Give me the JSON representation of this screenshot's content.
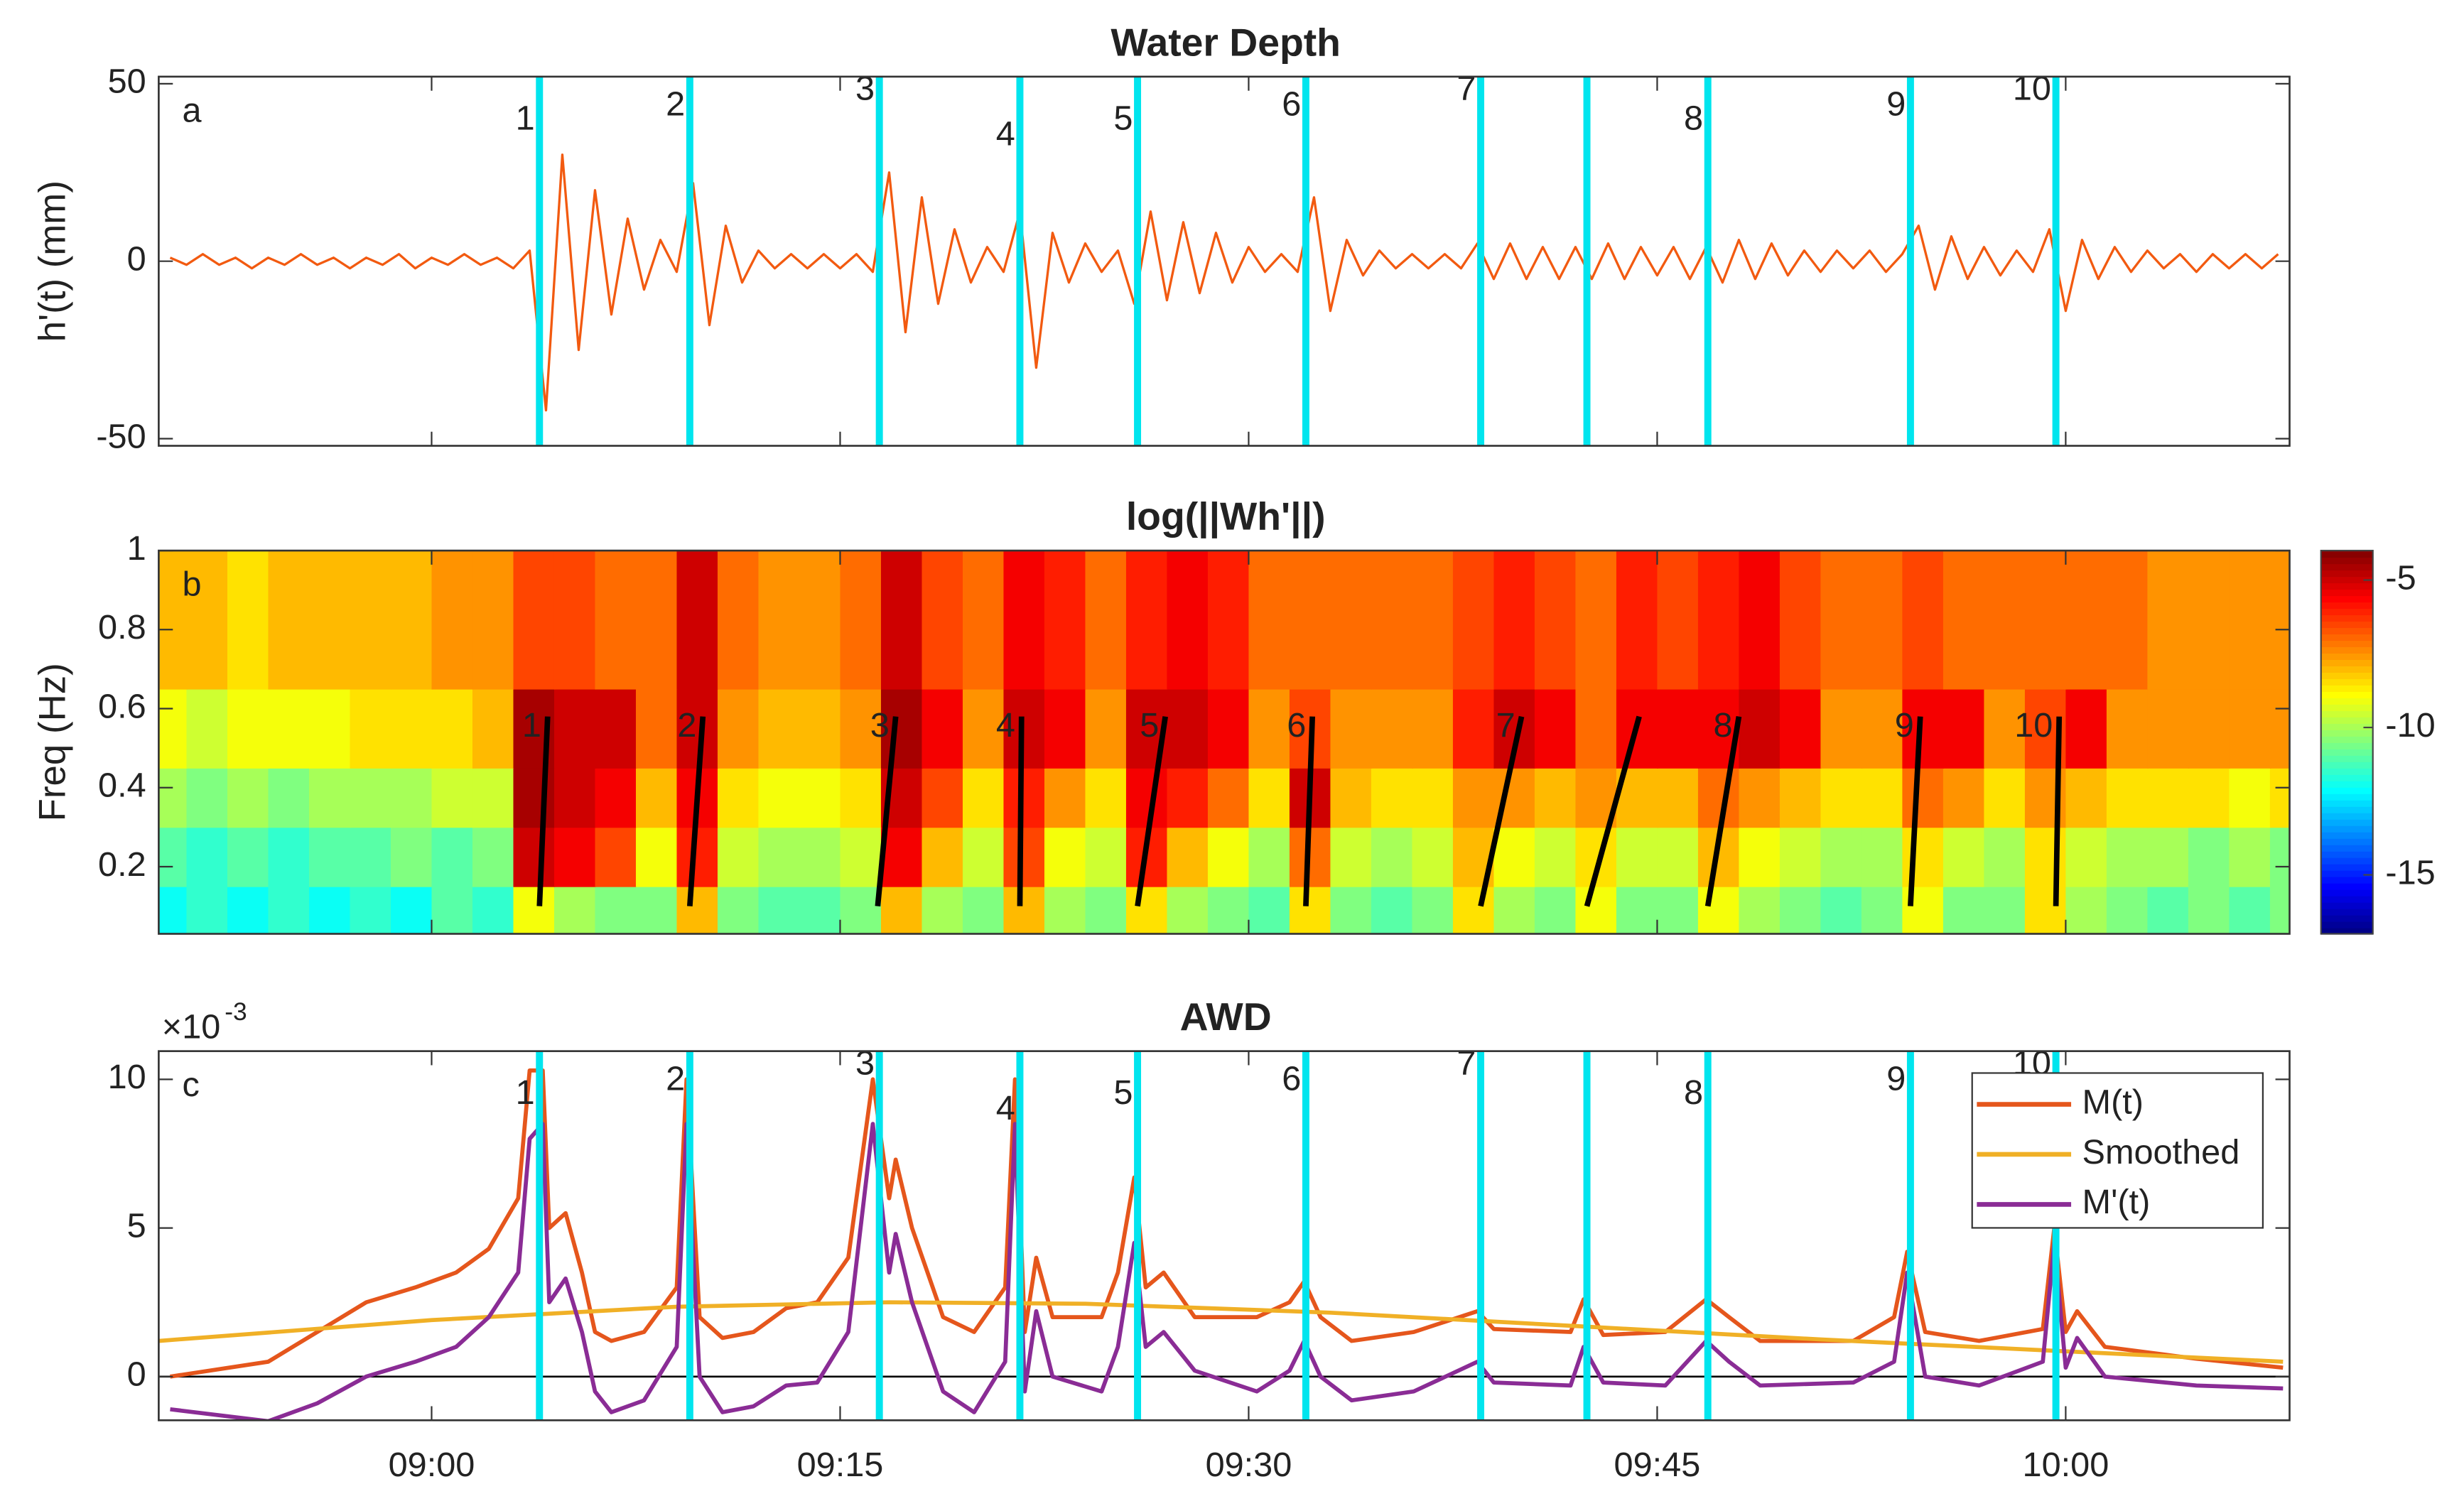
{
  "chart_data": [
    {
      "type": "line",
      "title": "Water Depth",
      "panel": "a",
      "ylabel": "h'(t) (mm)",
      "xlim": [
        8.833,
        10.137
      ],
      "xticks": [
        9,
        9.25,
        9.5,
        9.75,
        10
      ],
      "ylim": [
        -52,
        52
      ],
      "yticks": [
        -50,
        0,
        50
      ],
      "x": [
        8.84,
        8.85,
        8.86,
        8.87,
        8.88,
        8.89,
        8.9,
        8.91,
        8.92,
        8.93,
        8.94,
        8.95,
        8.96,
        8.97,
        8.98,
        8.99,
        9,
        9.01,
        9.02,
        9.03,
        9.04,
        9.05,
        9.06,
        9.07,
        9.08,
        9.09,
        9.1,
        9.11,
        9.12,
        9.13,
        9.14,
        9.15,
        9.16,
        9.17,
        9.18,
        9.19,
        9.2,
        9.21,
        9.22,
        9.23,
        9.24,
        9.25,
        9.26,
        9.27,
        9.28,
        9.29,
        9.3,
        9.31,
        9.32,
        9.33,
        9.34,
        9.35,
        9.36,
        9.37,
        9.38,
        9.39,
        9.4,
        9.41,
        9.42,
        9.43,
        9.44,
        9.45,
        9.46,
        9.47,
        9.48,
        9.49,
        9.5,
        9.51,
        9.52,
        9.53,
        9.54,
        9.55,
        9.56,
        9.57,
        9.58,
        9.59,
        9.6,
        9.61,
        9.62,
        9.63,
        9.64,
        9.65,
        9.66,
        9.67,
        9.68,
        9.69,
        9.7,
        9.71,
        9.72,
        9.73,
        9.74,
        9.75,
        9.76,
        9.77,
        9.78,
        9.79,
        9.8,
        9.81,
        9.82,
        9.83,
        9.84,
        9.85,
        9.86,
        9.87,
        9.88,
        9.89,
        9.9,
        9.91,
        9.92,
        9.93,
        9.94,
        9.95,
        9.96,
        9.97,
        9.98,
        9.99,
        10,
        10.01,
        10.02,
        10.03,
        10.04,
        10.05,
        10.06,
        10.07,
        10.08,
        10.09,
        10.1,
        10.11,
        10.12,
        10.13
      ],
      "series": [
        {
          "color": "#f25a10",
          "values": [
            1,
            -1,
            2,
            -1,
            1,
            -2,
            1,
            -1,
            2,
            -1,
            1,
            -2,
            1,
            -1,
            2,
            -2,
            1,
            -1,
            2,
            -1,
            1,
            -2,
            3,
            -42,
            30,
            -25,
            20,
            -15,
            12,
            -8,
            6,
            -3,
            22,
            -18,
            10,
            -6,
            3,
            -2,
            2,
            -2,
            2,
            -2,
            2,
            -3,
            25,
            -20,
            18,
            -12,
            9,
            -6,
            4,
            -3,
            14,
            -30,
            8,
            -6,
            5,
            -3,
            3,
            -12,
            14,
            -11,
            11,
            -9,
            8,
            -6,
            4,
            -3,
            2,
            -3,
            18,
            -14,
            6,
            -4,
            3,
            -2,
            2,
            -2,
            2,
            -2,
            5,
            -5,
            5,
            -5,
            4,
            -5,
            4,
            -5,
            5,
            -5,
            4,
            -4,
            4,
            -5,
            4,
            -6,
            6,
            -5,
            5,
            -4,
            3,
            -3,
            3,
            -2,
            3,
            -3,
            2,
            10,
            -8,
            7,
            -5,
            4,
            -4,
            3,
            -3,
            9,
            -14,
            6,
            -5,
            4,
            -3,
            3,
            -2,
            2,
            -3,
            2,
            -2,
            2,
            -2,
            2
          ]
        }
      ],
      "event_color": "#00e5ee",
      "events": [
        {
          "x": 9.066,
          "label": "1"
        },
        {
          "x": 9.158,
          "label": "2"
        },
        {
          "x": 9.274,
          "label": "3"
        },
        {
          "x": 9.36,
          "label": "4"
        },
        {
          "x": 9.432,
          "label": "5"
        },
        {
          "x": 9.535,
          "label": "6"
        },
        {
          "x": 9.642,
          "label": "7"
        },
        {
          "x": 9.707
        },
        {
          "x": 9.781,
          "label": "8"
        },
        {
          "x": 9.905,
          "label": "9"
        },
        {
          "x": 9.994,
          "label": "10"
        }
      ]
    },
    {
      "type": "heatmap",
      "title": "log(||Wh'||)",
      "panel": "b",
      "ylabel": "Freq (Hz)",
      "xlim": [
        8.833,
        10.137
      ],
      "xticks": [
        9,
        9.25,
        9.5,
        9.75,
        10
      ],
      "ylim": [
        0.03,
        1
      ],
      "yticks": [
        0.2,
        0.4,
        0.6,
        0.8,
        1
      ],
      "colormap": "jet",
      "clim": [
        -17,
        -4
      ],
      "cticks": [
        -15,
        -10,
        -5
      ],
      "x_bins": [
        8.825,
        8.85,
        8.875,
        8.9,
        8.925,
        8.95,
        8.975,
        9,
        9.025,
        9.05,
        9.075,
        9.1,
        9.125,
        9.15,
        9.175,
        9.2,
        9.225,
        9.25,
        9.275,
        9.3,
        9.325,
        9.35,
        9.375,
        9.4,
        9.425,
        9.45,
        9.475,
        9.5,
        9.525,
        9.55,
        9.575,
        9.6,
        9.625,
        9.65,
        9.675,
        9.7,
        9.725,
        9.75,
        9.775,
        9.8,
        9.825,
        9.85,
        9.875,
        9.9,
        9.925,
        9.95,
        9.975,
        10,
        10.025,
        10.05,
        10.075,
        10.1,
        10.125,
        10.15
      ],
      "y_bins": [
        0.03,
        0.15,
        0.3,
        0.45,
        0.65,
        1
      ],
      "z": [
        [
          -12,
          -11.5,
          -12,
          -11.5,
          -12,
          -11.5,
          -12,
          -11,
          -11.5,
          -9,
          -10,
          -10.5,
          -10.5,
          -8,
          -10.5,
          -11,
          -11,
          -10.5,
          -8,
          -10,
          -10.5,
          -8,
          -10,
          -10.5,
          -8.5,
          -10,
          -10.5,
          -11,
          -8.5,
          -10.5,
          -11,
          -10.5,
          -8.5,
          -10,
          -10.5,
          -9,
          -10.5,
          -10.5,
          -9,
          -10,
          -10.5,
          -11,
          -10.5,
          -9,
          -10.5,
          -10.5,
          -8.5,
          -10,
          -10.5,
          -11,
          -10.5,
          -11,
          -10.5
        ],
        [
          -11,
          -11.5,
          -11,
          -11.5,
          -11,
          -11,
          -10.5,
          -11,
          -10.5,
          -5,
          -5.5,
          -6.5,
          -9,
          -6,
          -9.5,
          -10,
          -10,
          -9.5,
          -5.5,
          -8,
          -9.5,
          -6.5,
          -9,
          -9.5,
          -6,
          -8,
          -9,
          -10,
          -7,
          -9.5,
          -10,
          -9.5,
          -8,
          -9,
          -9.5,
          -8.5,
          -9.5,
          -9.5,
          -8,
          -9,
          -9.5,
          -10,
          -10,
          -8.5,
          -9.5,
          -10,
          -8.5,
          -9.5,
          -10,
          -10,
          -10.5,
          -10,
          -10.5
        ],
        [
          -10,
          -10.5,
          -10,
          -10.5,
          -10,
          -10,
          -10,
          -9.5,
          -9.5,
          -4.5,
          -5,
          -5.5,
          -8,
          -5.5,
          -8.5,
          -9,
          -9,
          -8.5,
          -5,
          -6.5,
          -8.5,
          -6,
          -7.5,
          -8.5,
          -5.5,
          -6,
          -7,
          -8.5,
          -5,
          -8,
          -8.5,
          -8.5,
          -7.5,
          -7.5,
          -8,
          -7.5,
          -8,
          -8,
          -7,
          -7.5,
          -8,
          -8.5,
          -8.5,
          -7,
          -7.5,
          -8.5,
          -7.5,
          -8,
          -8.5,
          -8.5,
          -8.5,
          -9,
          -8.5
        ],
        [
          -9,
          -9.5,
          -9,
          -9,
          -9,
          -8.5,
          -8.5,
          -8.5,
          -8,
          -4.5,
          -5,
          -5,
          -7,
          -5,
          -7.5,
          -8,
          -8,
          -7.5,
          -4.5,
          -5.5,
          -7.5,
          -5,
          -5.5,
          -7.5,
          -5,
          -5,
          -5.5,
          -7.5,
          -6.5,
          -7.5,
          -7.5,
          -7.5,
          -6,
          -5,
          -5.5,
          -7,
          -5.5,
          -5.5,
          -5.5,
          -5,
          -5.5,
          -7.5,
          -7.5,
          -5.5,
          -5.5,
          -7.5,
          -6.5,
          -5.5,
          -7.5,
          -7.5,
          -7.5,
          -7.5,
          -7.5
        ],
        [
          -8,
          -8,
          -8.5,
          -8,
          -8,
          -8,
          -8,
          -7.5,
          -7.5,
          -6.5,
          -6.5,
          -7,
          -7,
          -5,
          -7,
          -7.5,
          -7.5,
          -7,
          -5,
          -6.5,
          -7,
          -5.5,
          -6,
          -7,
          -6,
          -5.5,
          -6,
          -7,
          -7,
          -7,
          -7,
          -7,
          -6.5,
          -6,
          -6.5,
          -7,
          -6,
          -6.5,
          -6,
          -5.5,
          -6.5,
          -7,
          -7,
          -6.5,
          -7,
          -7,
          -7,
          -7,
          -7,
          -7.5,
          -7.5,
          -7.5,
          -7.5
        ]
      ],
      "ridge_color": "#000000",
      "ridge_freq": [
        0.1,
        0.58
      ],
      "ridges": [
        {
          "x": [
            9.066,
            9.071
          ],
          "label": "1"
        },
        {
          "x": [
            9.158,
            9.166
          ],
          "label": "2"
        },
        {
          "x": [
            9.273,
            9.284
          ],
          "label": "3"
        },
        {
          "x": [
            9.36,
            9.361
          ],
          "label": "4"
        },
        {
          "x": [
            9.432,
            9.449
          ],
          "label": "5"
        },
        {
          "x": [
            9.535,
            9.539
          ],
          "label": "6"
        },
        {
          "x": [
            9.642,
            9.667
          ],
          "label": "7"
        },
        {
          "x": [
            9.707,
            9.739
          ]
        },
        {
          "x": [
            9.781,
            9.8
          ],
          "label": "8"
        },
        {
          "x": [
            9.905,
            9.911
          ],
          "label": "9"
        },
        {
          "x": [
            9.994,
            9.996
          ],
          "label": "10"
        }
      ]
    },
    {
      "type": "line",
      "title": "AWD",
      "panel": "c",
      "legend": "northeast",
      "y_multiplier": "×10",
      "y_exponent": "-3",
      "hline": 0,
      "xlim": [
        8.833,
        10.137
      ],
      "xticks": [
        {
          "value": 9,
          "label": "09:00"
        },
        {
          "value": 9.25,
          "label": "09:15"
        },
        {
          "value": 9.5,
          "label": "09:30"
        },
        {
          "value": 9.75,
          "label": "09:45"
        },
        {
          "value": 10,
          "label": "10:00"
        }
      ],
      "ylim": [
        -0.00147,
        0.01095
      ],
      "yticks": [
        0,
        {
          "value": 0.005,
          "label": "5"
        },
        {
          "value": 0.01,
          "label": "10"
        }
      ],
      "series": [
        {
          "name": "M(t)",
          "color": "#e5561c",
          "x": [
            8.84,
            8.9,
            8.93,
            8.96,
            8.99,
            9.015,
            9.035,
            9.053,
            9.06,
            9.068,
            9.072,
            9.082,
            9.092,
            9.1,
            9.11,
            9.13,
            9.15,
            9.156,
            9.164,
            9.178,
            9.197,
            9.217,
            9.236,
            9.255,
            9.27,
            9.28,
            9.284,
            9.294,
            9.313,
            9.332,
            9.351,
            9.357,
            9.363,
            9.37,
            9.38,
            9.41,
            9.42,
            9.43,
            9.437,
            9.448,
            9.467,
            9.505,
            9.525,
            9.534,
            9.544,
            9.563,
            9.601,
            9.64,
            9.65,
            9.697,
            9.705,
            9.717,
            9.755,
            9.78,
            9.794,
            9.813,
            9.87,
            9.895,
            9.903,
            9.914,
            9.947,
            9.986,
            9.993,
            10,
            10.007,
            10.024,
            10.08,
            10.133
          ],
          "values": [
            0,
            0.0005,
            0.0015,
            0.0025,
            0.003,
            0.0035,
            0.0043,
            0.006,
            0.0103,
            0.0103,
            0.005,
            0.0055,
            0.0035,
            0.0015,
            0.0012,
            0.0015,
            0.003,
            0.01,
            0.002,
            0.0013,
            0.0015,
            0.0023,
            0.0025,
            0.004,
            0.01,
            0.006,
            0.0073,
            0.005,
            0.002,
            0.0015,
            0.003,
            0.01,
            0.0015,
            0.004,
            0.002,
            0.002,
            0.0035,
            0.0067,
            0.003,
            0.0035,
            0.002,
            0.002,
            0.0025,
            0.0032,
            0.002,
            0.0012,
            0.0015,
            0.0022,
            0.0016,
            0.0015,
            0.0026,
            0.0014,
            0.0015,
            0.0026,
            0.002,
            0.0012,
            0.0012,
            0.002,
            0.0042,
            0.0015,
            0.0012,
            0.0016,
            0.005,
            0.0015,
            0.0022,
            0.001,
            0.0006,
            0.0003
          ]
        },
        {
          "name": "Smoothed",
          "color": "#f0b026",
          "x": [
            8.833,
            9,
            9.15,
            9.28,
            9.4,
            9.55,
            9.7,
            9.85,
            10,
            10.133
          ],
          "values": [
            0.0012,
            0.0019,
            0.00235,
            0.0025,
            0.00245,
            0.00215,
            0.0017,
            0.00125,
            0.00085,
            0.0005
          ]
        },
        {
          "name": "M'(t)",
          "color": "#8a2c95",
          "x": [
            8.84,
            8.9,
            8.93,
            8.96,
            8.99,
            9.015,
            9.035,
            9.053,
            9.06,
            9.068,
            9.072,
            9.082,
            9.092,
            9.1,
            9.11,
            9.13,
            9.15,
            9.156,
            9.164,
            9.178,
            9.197,
            9.217,
            9.236,
            9.255,
            9.27,
            9.28,
            9.284,
            9.294,
            9.313,
            9.332,
            9.351,
            9.357,
            9.363,
            9.37,
            9.38,
            9.41,
            9.42,
            9.43,
            9.437,
            9.448,
            9.467,
            9.505,
            9.525,
            9.534,
            9.544,
            9.563,
            9.601,
            9.64,
            9.65,
            9.697,
            9.705,
            9.717,
            9.755,
            9.78,
            9.794,
            9.813,
            9.87,
            9.895,
            9.903,
            9.914,
            9.947,
            9.986,
            9.993,
            10,
            10.007,
            10.024,
            10.08,
            10.133
          ],
          "values": [
            -0.0011,
            -0.0015,
            -0.0009,
            0,
            0.0005,
            0.001,
            0.002,
            0.0035,
            0.008,
            0.0085,
            0.0025,
            0.0033,
            0.0015,
            -0.0005,
            -0.0012,
            -0.0008,
            0.001,
            0.0085,
            0,
            -0.0012,
            -0.001,
            -0.0003,
            -0.0002,
            0.0015,
            0.0085,
            0.0035,
            0.0048,
            0.0025,
            -0.0005,
            -0.0012,
            0.0005,
            0.0085,
            -0.0005,
            0.0022,
            0,
            -0.0005,
            0.001,
            0.0045,
            0.001,
            0.0015,
            0.0002,
            -0.0005,
            0.0002,
            0.0012,
            0,
            -0.0008,
            -0.0005,
            0.0005,
            -0.0002,
            -0.0003,
            0.001,
            -0.0002,
            -0.0003,
            0.0012,
            0.0005,
            -0.0003,
            -0.0002,
            0.0005,
            0.0035,
            0,
            -0.0003,
            0.0005,
            0.0045,
            0.0003,
            0.0013,
            0,
            -0.0003,
            -0.0004
          ]
        }
      ],
      "event_color": "#00e5ee",
      "events": [
        {
          "x": 9.066,
          "label": "1"
        },
        {
          "x": 9.158,
          "label": "2"
        },
        {
          "x": 9.274,
          "label": "3"
        },
        {
          "x": 9.36,
          "label": "4"
        },
        {
          "x": 9.432,
          "label": "5"
        },
        {
          "x": 9.535,
          "label": "6"
        },
        {
          "x": 9.642,
          "label": "7"
        },
        {
          "x": 9.707
        },
        {
          "x": 9.781,
          "label": "8"
        },
        {
          "x": 9.905,
          "label": "9"
        },
        {
          "x": 9.994,
          "label": "10"
        }
      ]
    }
  ]
}
